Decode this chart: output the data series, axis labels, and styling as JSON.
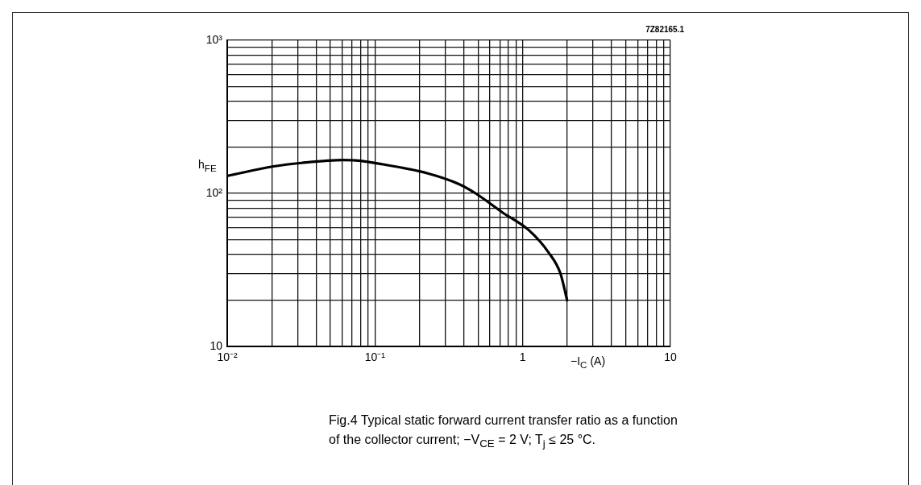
{
  "chart_data": {
    "type": "line",
    "x": [
      0.01,
      0.0206,
      0.0318,
      0.061,
      0.074,
      0.108,
      0.228,
      0.37,
      0.48,
      0.73,
      1.1,
      1.5,
      1.8,
      2
    ],
    "values": [
      130,
      150,
      158,
      165,
      164,
      156,
      135,
      115,
      100,
      75,
      57.5,
      41,
      30,
      20
    ],
    "color": "#000000",
    "xlim": [
      0.01,
      10
    ],
    "ylim": [
      10,
      1000
    ],
    "xticks": [
      {
        "value": 0.01,
        "label": "10⁻²"
      },
      {
        "value": 0.02,
        "label": null
      },
      {
        "value": 0.03,
        "label": null
      },
      {
        "value": 0.04,
        "label": null
      },
      {
        "value": 0.05,
        "label": null
      },
      {
        "value": 0.06,
        "label": null
      },
      {
        "value": 0.07,
        "label": null
      },
      {
        "value": 0.08,
        "label": null
      },
      {
        "value": 0.09,
        "label": null
      },
      {
        "value": 0.1,
        "label": "10⁻¹"
      },
      {
        "value": 0.2,
        "label": null
      },
      {
        "value": 0.3,
        "label": null
      },
      {
        "value": 0.4,
        "label": null
      },
      {
        "value": 0.5,
        "label": null
      },
      {
        "value": 0.6,
        "label": null
      },
      {
        "value": 0.7,
        "label": null
      },
      {
        "value": 0.8,
        "label": null
      },
      {
        "value": 0.9,
        "label": null
      },
      1,
      {
        "value": 2,
        "label": null
      },
      {
        "value": 3,
        "label": null
      },
      {
        "value": 4,
        "label": null
      },
      {
        "value": 5,
        "label": null
      },
      {
        "value": 6,
        "label": null
      },
      {
        "value": 7,
        "label": null
      },
      {
        "value": 8,
        "label": null
      },
      {
        "value": 9,
        "label": null
      },
      10
    ],
    "yticks": [
      10,
      {
        "value": 20,
        "label": null
      },
      {
        "value": 30,
        "label": null
      },
      {
        "value": 40,
        "label": null
      },
      {
        "value": 50,
        "label": null
      },
      {
        "value": 60,
        "label": null
      },
      {
        "value": 70,
        "label": null
      },
      {
        "value": 80,
        "label": null
      },
      {
        "value": 90,
        "label": null
      },
      {
        "value": 100,
        "label": "10²"
      },
      {
        "value": 200,
        "label": null
      },
      {
        "value": 300,
        "label": null
      },
      {
        "value": 400,
        "label": null
      },
      {
        "value": 500,
        "label": null
      },
      {
        "value": 600,
        "label": null
      },
      {
        "value": 700,
        "label": null
      },
      {
        "value": 800,
        "label": null
      },
      {
        "value": 900,
        "label": null
      },
      {
        "value": 1000,
        "label": "10³"
      }
    ],
    "log": "xy",
    "grid": true,
    "xlabel": "−I$_{C}$ (A)",
    "ylabel": "h$_{FE}$",
    "annotations": [
      "7Z82165.1",
      "Fig.4 Typical static forward current transfer ratio as a function of the collector current; −V$_{CE}$ = 2 V; T$_{j}$ ≤ 25 °C."
    ]
  }
}
